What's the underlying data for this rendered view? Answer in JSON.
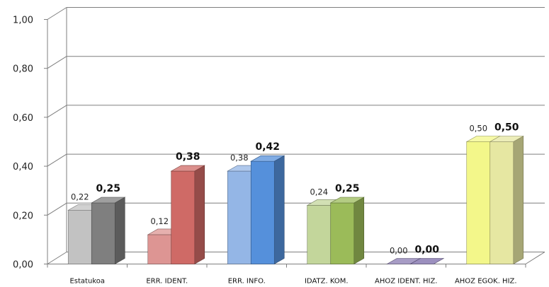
{
  "chart_data": {
    "type": "bar",
    "categories": [
      "Estatukoa",
      "ERR. IDENT.",
      "ERR. INFO.",
      "IDATZ. KOM.",
      "AHOZ IDENT. HIZ.",
      "AHOZ EGOK. HIZ."
    ],
    "series": [
      {
        "values": [
          0.22,
          0.12,
          0.38,
          0.24,
          0.0,
          0.5
        ],
        "value_labels": [
          "0,22",
          "0,12",
          "0,38",
          "0,24",
          "0,00",
          "0,50"
        ]
      },
      {
        "values": [
          0.25,
          0.38,
          0.42,
          0.25,
          0.0,
          0.5
        ],
        "value_labels": [
          "0,25",
          "0,38",
          "0,42",
          "0,25",
          "0,00",
          "0,50"
        ]
      }
    ],
    "colors": [
      {
        "a_front": "#c2c2c2",
        "b_front": "#7f7f7f"
      },
      {
        "a_front": "#dd9593",
        "b_front": "#cf6a66"
      },
      {
        "a_front": "#94b6e6",
        "b_front": "#5590db"
      },
      {
        "a_front": "#c3d69b",
        "b_front": "#9bbb59"
      },
      {
        "a_front": "#8a7bb1",
        "b_front": "#7a69a8"
      },
      {
        "a_front": "#f3f78a",
        "b_front": "#e6e7a2"
      }
    ],
    "ylim": [
      0,
      1
    ],
    "yticks": [
      "0,00",
      "0,20",
      "0,40",
      "0,60",
      "0,80",
      "1,00"
    ],
    "grid": true,
    "title": "",
    "xlabel": "",
    "ylabel": ""
  }
}
